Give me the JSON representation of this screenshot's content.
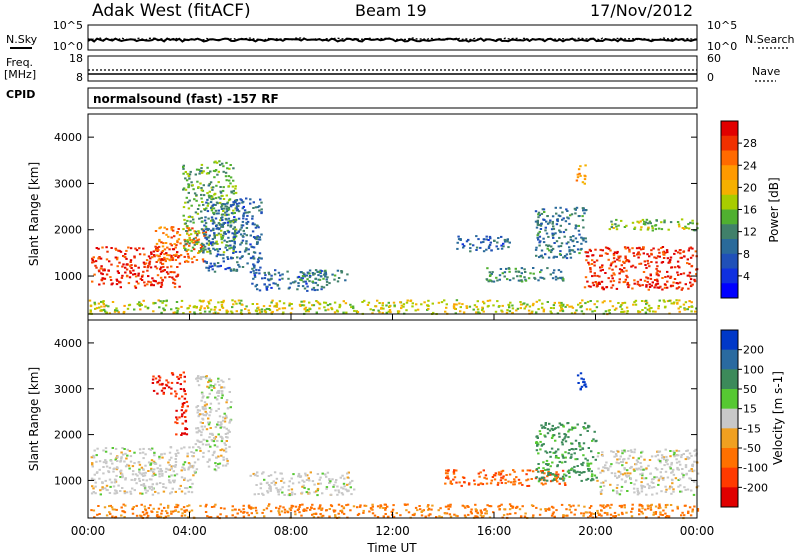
{
  "header": {
    "station": "Adak West (fitACF)",
    "beam": "Beam 19",
    "date": "17/Nov/2012"
  },
  "status_panels": {
    "nsky_label": "N.Sky",
    "nsky_ticks": [
      "10^5",
      "10^0"
    ],
    "nsearch_label": "N.Search",
    "nsearch_ticks": [
      "10^5",
      "10^0"
    ],
    "freq_label": "Freq.",
    "freq_unit": "[MHz]",
    "freq_ticks": [
      "18",
      "8"
    ],
    "nave_label": "Nave",
    "nave_ticks": [
      "60",
      "0"
    ],
    "cpid_label": "CPID",
    "cpid_value": "normalsound (fast) -157 RF"
  },
  "axes": {
    "xlabel": "Time UT",
    "x_ticks": [
      "00:00",
      "04:00",
      "08:00",
      "12:00",
      "16:00",
      "20:00",
      "00:00"
    ],
    "ylabel": "Slant Range [km]",
    "y_ticks": [
      "1000",
      "2000",
      "3000",
      "4000"
    ]
  },
  "power_colorbar": {
    "label": "Power [dB]",
    "ticks": [
      "28",
      "24",
      "20",
      "16",
      "12",
      "8",
      "4"
    ],
    "colors": [
      "#e10000",
      "#f03000",
      "#ff6a00",
      "#ff9a00",
      "#f5b000",
      "#a8cc00",
      "#50b030",
      "#40806a",
      "#2a6a9a",
      "#2050b8",
      "#1030e0",
      "#0000ff"
    ]
  },
  "velocity_colorbar": {
    "label": "Velocity [m s-1]",
    "ticks": [
      "200",
      "100",
      "50",
      "15",
      "-15",
      "-50",
      "-100",
      "-200"
    ],
    "colors": [
      "#0038c8",
      "#2a6aa0",
      "#3c8a5a",
      "#56c832",
      "#c8c8c8",
      "#f0a020",
      "#ff7000",
      "#ff3a00",
      "#e00000"
    ]
  },
  "chart_data": {
    "type": "heatmap",
    "x_range_hours": [
      0,
      24
    ],
    "y_range_km": [
      180,
      4500
    ],
    "panels": [
      {
        "name": "power",
        "regions": [
          {
            "t": [
              0.1,
              3.6
            ],
            "r": [
              760,
              1650
            ],
            "value_db": 30
          },
          {
            "t": [
              2.6,
              4.6
            ],
            "r": [
              1300,
              2100
            ],
            "value_db": 26
          },
          {
            "t": [
              3.7,
              5.8
            ],
            "r": [
              1500,
              3500
            ],
            "value_db": 14
          },
          {
            "t": [
              4.5,
              6.8
            ],
            "r": [
              1100,
              2700
            ],
            "value_db": 8
          },
          {
            "t": [
              6.4,
              9.4
            ],
            "r": [
              700,
              1150
            ],
            "value_db": 8
          },
          {
            "t": [
              8.3,
              10.2
            ],
            "r": [
              860,
              1150
            ],
            "value_db": 12
          },
          {
            "t": [
              14.5,
              16.6
            ],
            "r": [
              1550,
              1900
            ],
            "value_db": 8
          },
          {
            "t": [
              15.5,
              18.8
            ],
            "r": [
              900,
              1200
            ],
            "value_db": 12
          },
          {
            "t": [
              17.6,
              19.6
            ],
            "r": [
              1400,
              2500
            ],
            "value_db": 10
          },
          {
            "t": [
              19.5,
              24.0
            ],
            "r": [
              720,
              1650
            ],
            "value_db": 30
          },
          {
            "t": [
              19.2,
              19.6
            ],
            "r": [
              3000,
              3450
            ],
            "value_db": 22
          },
          {
            "t": [
              20.5,
              24.0
            ],
            "r": [
              2000,
              2250
            ],
            "value_db": 16
          },
          {
            "t": [
              0.0,
              24.0
            ],
            "r": [
              200,
              500
            ],
            "value_db": 18
          }
        ]
      },
      {
        "name": "velocity",
        "regions": [
          {
            "t": [
              0.1,
              4.2
            ],
            "r": [
              700,
              1750
            ],
            "value_ms": 0
          },
          {
            "t": [
              2.5,
              3.8
            ],
            "r": [
              2900,
              3400
            ],
            "value_ms": -150
          },
          {
            "t": [
              3.4,
              3.9
            ],
            "r": [
              2000,
              2900
            ],
            "value_ms": -150
          },
          {
            "t": [
              4.2,
              5.6
            ],
            "r": [
              1200,
              3300
            ],
            "value_ms": 0
          },
          {
            "t": [
              6.3,
              10.5
            ],
            "r": [
              700,
              1200
            ],
            "value_ms": 0
          },
          {
            "t": [
              14.0,
              18.8
            ],
            "r": [
              900,
              1250
            ],
            "value_ms": -70
          },
          {
            "t": [
              17.6,
              20.0
            ],
            "r": [
              1000,
              2300
            ],
            "value_ms": 40
          },
          {
            "t": [
              19.2,
              19.6
            ],
            "r": [
              3000,
              3400
            ],
            "value_ms": 200
          },
          {
            "t": [
              20.0,
              24.0
            ],
            "r": [
              700,
              1700
            ],
            "value_ms": 0
          },
          {
            "t": [
              0.0,
              24.0
            ],
            "r": [
              200,
              500
            ],
            "value_ms": -40
          }
        ]
      }
    ]
  }
}
